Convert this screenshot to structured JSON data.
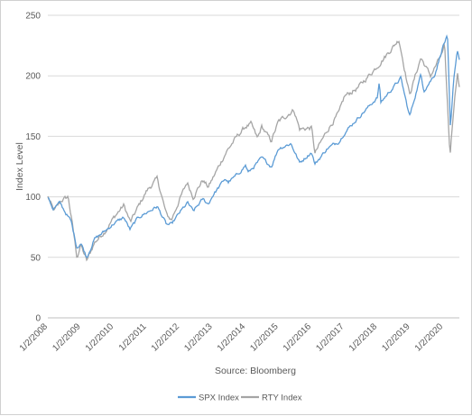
{
  "chart_data": {
    "type": "line",
    "title": "",
    "ylabel": "Index Level",
    "xlabel": "Source: Bloomberg",
    "ylim": [
      0,
      250
    ],
    "yticks": [
      0,
      50,
      100,
      150,
      200,
      250
    ],
    "xlim": [
      "2008-01-02",
      "2020-06-30"
    ],
    "xticks": [
      "1/2/2008",
      "1/2/2009",
      "1/2/2010",
      "1/2/2011",
      "1/2/2012",
      "1/2/2013",
      "1/2/2014",
      "1/2/2015",
      "1/2/2016",
      "1/2/2017",
      "1/2/2018",
      "1/2/2019",
      "1/2/2020"
    ],
    "grid": "horizontal",
    "legend": "bottom",
    "series": [
      {
        "name": "SPX Index",
        "color": "#5b9bd5",
        "x": [
          "2008-01-02",
          "2008-03-01",
          "2008-05-15",
          "2008-08-01",
          "2008-09-15",
          "2008-11-20",
          "2009-01-02",
          "2009-03-09",
          "2009-06-01",
          "2009-10-01",
          "2010-01-04",
          "2010-04-23",
          "2010-07-01",
          "2010-10-01",
          "2011-01-03",
          "2011-04-29",
          "2011-08-10",
          "2011-10-03",
          "2012-01-03",
          "2012-04-01",
          "2012-06-01",
          "2012-09-14",
          "2012-11-15",
          "2013-01-02",
          "2013-05-21",
          "2013-06-24",
          "2013-10-01",
          "2014-01-02",
          "2014-02-03",
          "2014-07-01",
          "2014-10-15",
          "2015-01-02",
          "2015-05-21",
          "2015-08-25",
          "2016-01-04",
          "2016-02-11",
          "2016-06-27",
          "2016-11-08",
          "2017-01-03",
          "2017-06-01",
          "2018-01-02",
          "2018-01-26",
          "2018-02-08",
          "2018-09-20",
          "2018-12-24",
          "2019-01-02",
          "2019-04-30",
          "2019-06-03",
          "2019-10-01",
          "2020-01-02",
          "2020-02-19",
          "2020-03-23",
          "2020-04-30",
          "2020-06-08",
          "2020-06-30"
        ],
        "values": [
          100,
          90,
          95,
          85,
          80,
          58,
          62,
          50,
          65,
          72,
          78,
          83,
          73,
          83,
          87,
          92,
          77,
          77,
          87,
          95,
          88,
          98,
          94,
          101,
          115,
          112,
          118,
          126,
          120,
          132,
          125,
          140,
          144,
          128,
          137,
          127,
          140,
          146,
          153,
          165,
          182,
          195,
          178,
          198,
          167,
          168,
          201,
          188,
          201,
          225,
          233,
          155,
          198,
          222,
          214
        ]
      },
      {
        "name": "RTY Index",
        "color": "#a5a5a5",
        "x": [
          "2008-01-02",
          "2008-03-10",
          "2008-06-01",
          "2008-08-15",
          "2008-10-10",
          "2008-11-20",
          "2009-01-02",
          "2009-03-09",
          "2009-06-01",
          "2009-10-01",
          "2010-01-04",
          "2010-04-23",
          "2010-07-06",
          "2010-10-01",
          "2011-01-03",
          "2011-04-29",
          "2011-08-10",
          "2011-10-03",
          "2012-01-03",
          "2012-03-26",
          "2012-06-01",
          "2012-09-14",
          "2012-11-15",
          "2013-01-02",
          "2013-06-01",
          "2013-10-01",
          "2014-01-02",
          "2014-03-04",
          "2014-05-15",
          "2014-07-01",
          "2014-10-13",
          "2015-01-02",
          "2015-06-23",
          "2015-08-25",
          "2016-01-04",
          "2016-02-11",
          "2016-06-27",
          "2016-11-08",
          "2017-01-03",
          "2017-06-01",
          "2018-01-02",
          "2018-08-31",
          "2018-12-24",
          "2019-01-02",
          "2019-04-30",
          "2019-08-15",
          "2020-01-02",
          "2020-01-17",
          "2020-03-18",
          "2020-04-30",
          "2020-06-08",
          "2020-06-30"
        ],
        "values": [
          100,
          88,
          97,
          100,
          72,
          50,
          60,
          47,
          62,
          72,
          83,
          93,
          79,
          92,
          105,
          115,
          85,
          81,
          98,
          112,
          100,
          114,
          108,
          115,
          137,
          150,
          158,
          160,
          148,
          158,
          146,
          162,
          172,
          156,
          157,
          136,
          155,
          170,
          183,
          190,
          208,
          230,
          185,
          186,
          215,
          200,
          220,
          226,
          134,
          175,
          204,
          190
        ]
      }
    ]
  }
}
